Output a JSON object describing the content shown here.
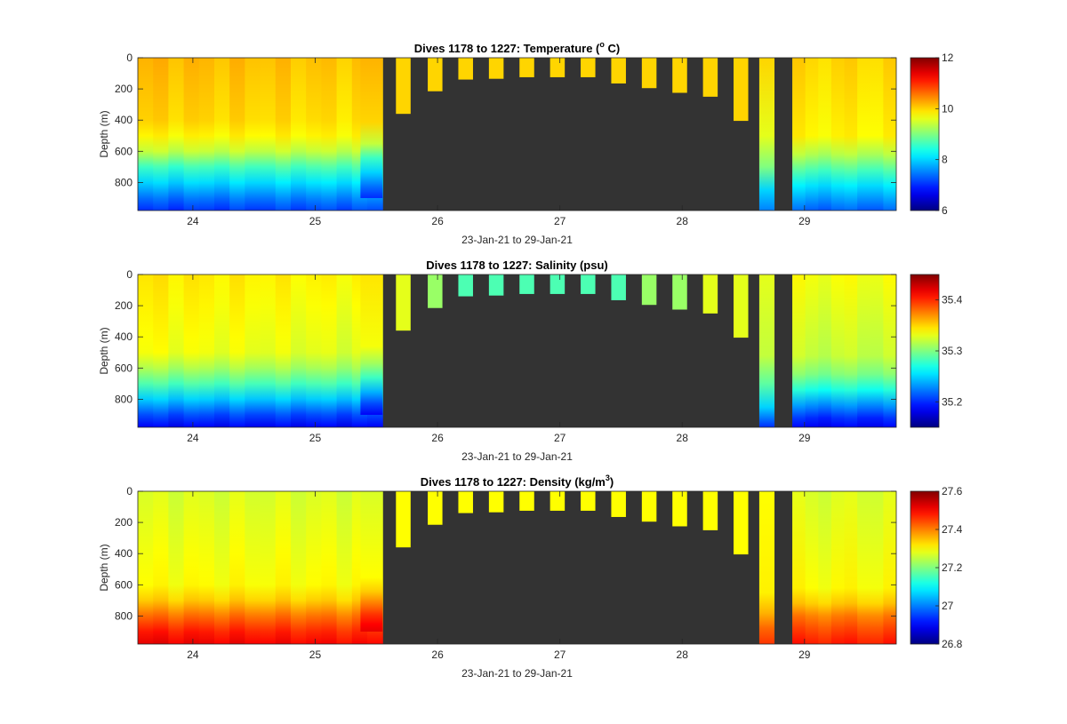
{
  "chart_data": [
    {
      "type": "heatmap",
      "title_main": "Dives 1178 to 1227: Temperature (",
      "title_sup": "o",
      "title_tail": " C)",
      "xlabel": "23-Jan-21 to 29-Jan-21",
      "ylabel": "Depth (m)",
      "xlim": [
        23.55,
        29.75
      ],
      "ylim": [
        0,
        980
      ],
      "y_reversed": true,
      "xticks": [
        24,
        25,
        26,
        27,
        28,
        29
      ],
      "xtick_labels": [
        "24",
        "25",
        "26",
        "27",
        "28",
        "29"
      ],
      "yticks": [
        0,
        200,
        400,
        600,
        800
      ],
      "ytick_labels": [
        "0",
        "200",
        "400",
        "600",
        "800"
      ],
      "colormap": "jet",
      "clim": [
        6,
        12
      ],
      "colorbar_ticks": [
        6,
        8,
        10,
        12
      ],
      "colorbar_labels": [
        "6",
        "8",
        "10",
        "12"
      ],
      "background_color": "#333333",
      "profiles": {
        "shallow_value": 10.0,
        "left_stops": [
          [
            0,
            10.2
          ],
          [
            450,
            10.0
          ],
          [
            600,
            9.4
          ],
          [
            700,
            8.6
          ],
          [
            800,
            8.0
          ],
          [
            900,
            7.4
          ],
          [
            980,
            7.0
          ]
        ],
        "right_stops": [
          [
            0,
            10.0
          ],
          [
            500,
            9.8
          ],
          [
            620,
            9.3
          ],
          [
            720,
            8.7
          ],
          [
            820,
            8.1
          ],
          [
            920,
            7.6
          ],
          [
            980,
            7.3
          ]
        ],
        "isolated_stops": [
          [
            0,
            10.0
          ],
          [
            500,
            9.6
          ],
          [
            700,
            9.0
          ],
          [
            850,
            8.0
          ],
          [
            980,
            7.5
          ]
        ],
        "isolated_gap_stops": [
          [
            0,
            10.0
          ],
          [
            500,
            9.6
          ],
          [
            700,
            9.0
          ],
          [
            850,
            8.0
          ],
          [
            980,
            7.5
          ]
        ]
      }
    },
    {
      "type": "heatmap",
      "title_main": "Dives 1178 to 1227: Salinity (psu)",
      "title_sup": "",
      "title_tail": "",
      "xlabel": "23-Jan-21 to 29-Jan-21",
      "ylabel": "Depth (m)",
      "xlim": [
        23.55,
        29.75
      ],
      "ylim": [
        0,
        980
      ],
      "y_reversed": true,
      "xticks": [
        24,
        25,
        26,
        27,
        28,
        29
      ],
      "xtick_labels": [
        "24",
        "25",
        "26",
        "27",
        "28",
        "29"
      ],
      "yticks": [
        0,
        200,
        400,
        600,
        800
      ],
      "ytick_labels": [
        "0",
        "200",
        "400",
        "600",
        "800"
      ],
      "colormap": "jet",
      "clim": [
        35.15,
        35.45
      ],
      "colorbar_ticks": [
        35.2,
        35.3,
        35.4
      ],
      "colorbar_labels": [
        "35.2",
        "35.3",
        "35.4"
      ],
      "background_color": "#333333",
      "profiles": {
        "shallow_value": 35.33,
        "left_stops": [
          [
            0,
            35.345
          ],
          [
            500,
            35.335
          ],
          [
            620,
            35.31
          ],
          [
            720,
            35.28
          ],
          [
            820,
            35.24
          ],
          [
            900,
            35.21
          ],
          [
            980,
            35.185
          ]
        ],
        "right_stops": [
          [
            0,
            35.335
          ],
          [
            520,
            35.32
          ],
          [
            640,
            35.3
          ],
          [
            740,
            35.27
          ],
          [
            840,
            35.23
          ],
          [
            920,
            35.2
          ],
          [
            980,
            35.185
          ]
        ],
        "isolated_stops": [
          [
            0,
            35.33
          ],
          [
            520,
            35.32
          ],
          [
            700,
            35.29
          ],
          [
            850,
            35.25
          ],
          [
            980,
            35.2
          ]
        ],
        "isolated_gap_stops": [
          [
            0,
            35.33
          ],
          [
            520,
            35.32
          ],
          [
            700,
            35.29
          ],
          [
            850,
            35.25
          ],
          [
            980,
            35.2
          ]
        ],
        "mid_shallow_value": 35.285
      }
    },
    {
      "type": "heatmap",
      "title_main": "Dives 1178 to 1227: Density (kg/m",
      "title_sup": "3",
      "title_tail": ")",
      "xlabel": "23-Jan-21 to 29-Jan-21",
      "ylabel": "Depth (m)",
      "xlim": [
        23.55,
        29.75
      ],
      "ylim": [
        0,
        980
      ],
      "y_reversed": true,
      "xticks": [
        24,
        25,
        26,
        27,
        28,
        29
      ],
      "xtick_labels": [
        "24",
        "25",
        "26",
        "27",
        "28",
        "29"
      ],
      "yticks": [
        0,
        200,
        400,
        600,
        800
      ],
      "ytick_labels": [
        "0",
        "200",
        "400",
        "600",
        "800"
      ],
      "colormap": "jet",
      "clim": [
        26.8,
        27.6
      ],
      "colorbar_ticks": [
        26.8,
        27.0,
        27.2,
        27.4,
        27.6
      ],
      "colorbar_labels": [
        "26.8",
        "27",
        "27.2",
        "27.4",
        "27.6"
      ],
      "background_color": "#333333",
      "profiles": {
        "shallow_value": 27.3,
        "left_stops": [
          [
            0,
            27.27
          ],
          [
            600,
            27.3
          ],
          [
            700,
            27.34
          ],
          [
            780,
            27.4
          ],
          [
            860,
            27.46
          ],
          [
            930,
            27.5
          ],
          [
            980,
            27.52
          ]
        ],
        "right_stops": [
          [
            0,
            27.27
          ],
          [
            620,
            27.3
          ],
          [
            720,
            27.34
          ],
          [
            800,
            27.4
          ],
          [
            880,
            27.44
          ],
          [
            950,
            27.47
          ],
          [
            980,
            27.48
          ]
        ],
        "isolated_stops": [
          [
            0,
            27.3
          ],
          [
            650,
            27.31
          ],
          [
            780,
            27.36
          ],
          [
            880,
            27.42
          ],
          [
            980,
            27.46
          ]
        ],
        "isolated_gap_stops": [
          [
            0,
            27.3
          ],
          [
            650,
            27.31
          ],
          [
            780,
            27.36
          ],
          [
            880,
            27.42
          ],
          [
            980,
            27.46
          ]
        ]
      }
    }
  ],
  "dives": {
    "left_start": 23.55,
    "left_end": 25.55,
    "left_count": 16,
    "right_start": 28.9,
    "right_end": 29.75,
    "right_count": 8,
    "isolated_columns": [
      {
        "x0": 28.63,
        "x1": 28.75,
        "depth": 980
      }
    ],
    "gap_profile": {
      "x0": 25.37,
      "x1": 25.55,
      "depth": 900
    },
    "shallow_dives": [
      {
        "x0": 25.66,
        "x1": 25.78,
        "depth": 360
      },
      {
        "x0": 25.92,
        "x1": 26.04,
        "depth": 215
      },
      {
        "x0": 26.17,
        "x1": 26.29,
        "depth": 140
      },
      {
        "x0": 26.42,
        "x1": 26.54,
        "depth": 135
      },
      {
        "x0": 26.67,
        "x1": 26.79,
        "depth": 125
      },
      {
        "x0": 26.92,
        "x1": 27.04,
        "depth": 125
      },
      {
        "x0": 27.17,
        "x1": 27.29,
        "depth": 125
      },
      {
        "x0": 27.42,
        "x1": 27.54,
        "depth": 165
      },
      {
        "x0": 27.67,
        "x1": 27.79,
        "depth": 195
      },
      {
        "x0": 27.92,
        "x1": 28.04,
        "depth": 225
      },
      {
        "x0": 28.17,
        "x1": 28.29,
        "depth": 250
      },
      {
        "x0": 28.42,
        "x1": 28.54,
        "depth": 405
      }
    ]
  }
}
